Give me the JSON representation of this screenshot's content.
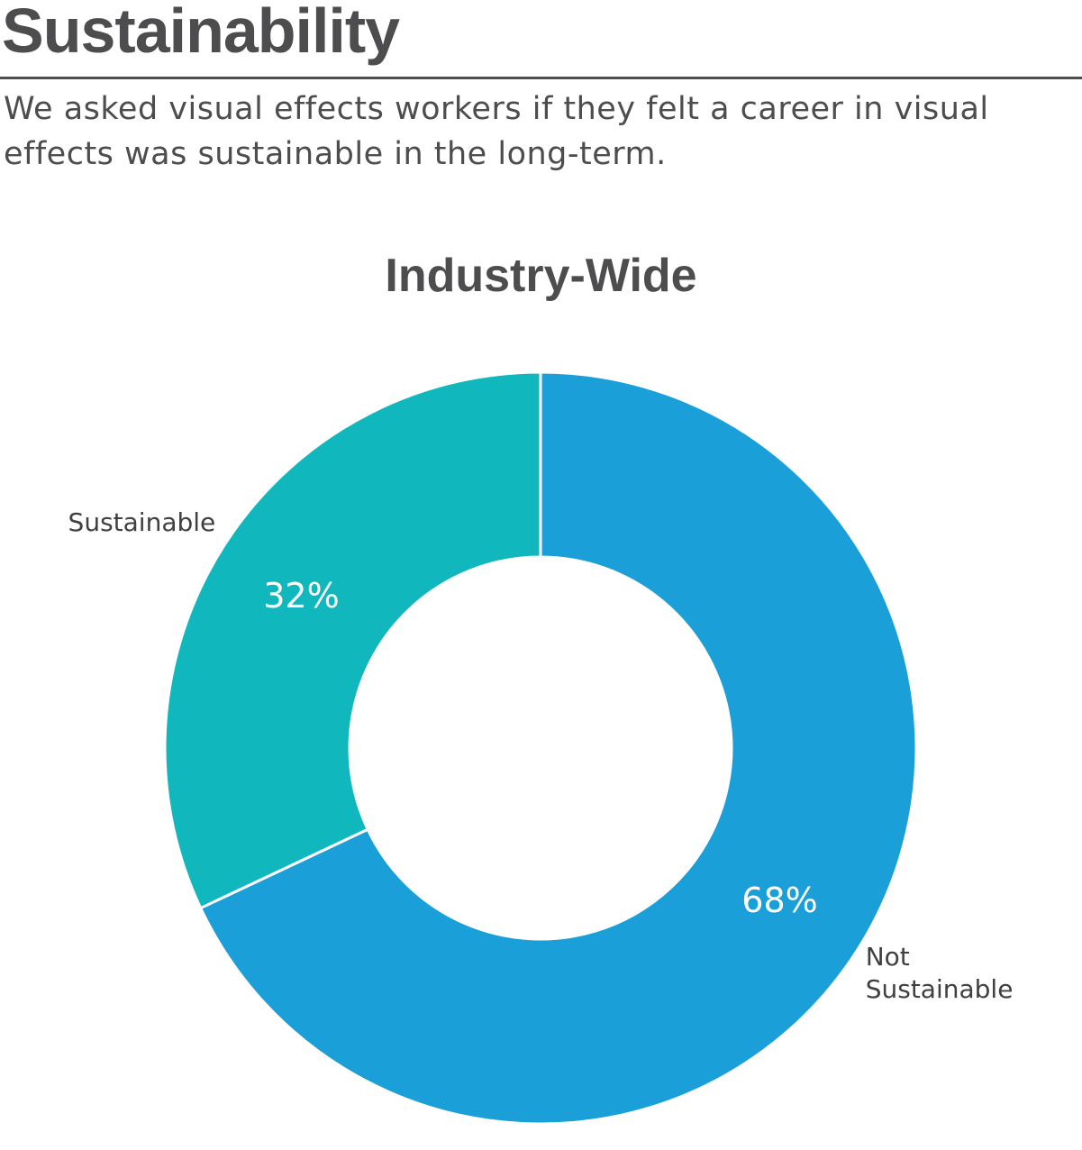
{
  "header": {
    "title": "Sustainability",
    "subtitle": "We asked visual effects workers if they felt a career in visual effects was sustainable in the long-term."
  },
  "chart_data": {
    "type": "donut",
    "title": "Industry-Wide",
    "categories": [
      "Not Sustainable",
      "Sustainable"
    ],
    "values": [
      68,
      32
    ],
    "value_labels": [
      "68%",
      "32%"
    ],
    "colors": [
      "#1a9fd9",
      "#10b7bd"
    ]
  }
}
